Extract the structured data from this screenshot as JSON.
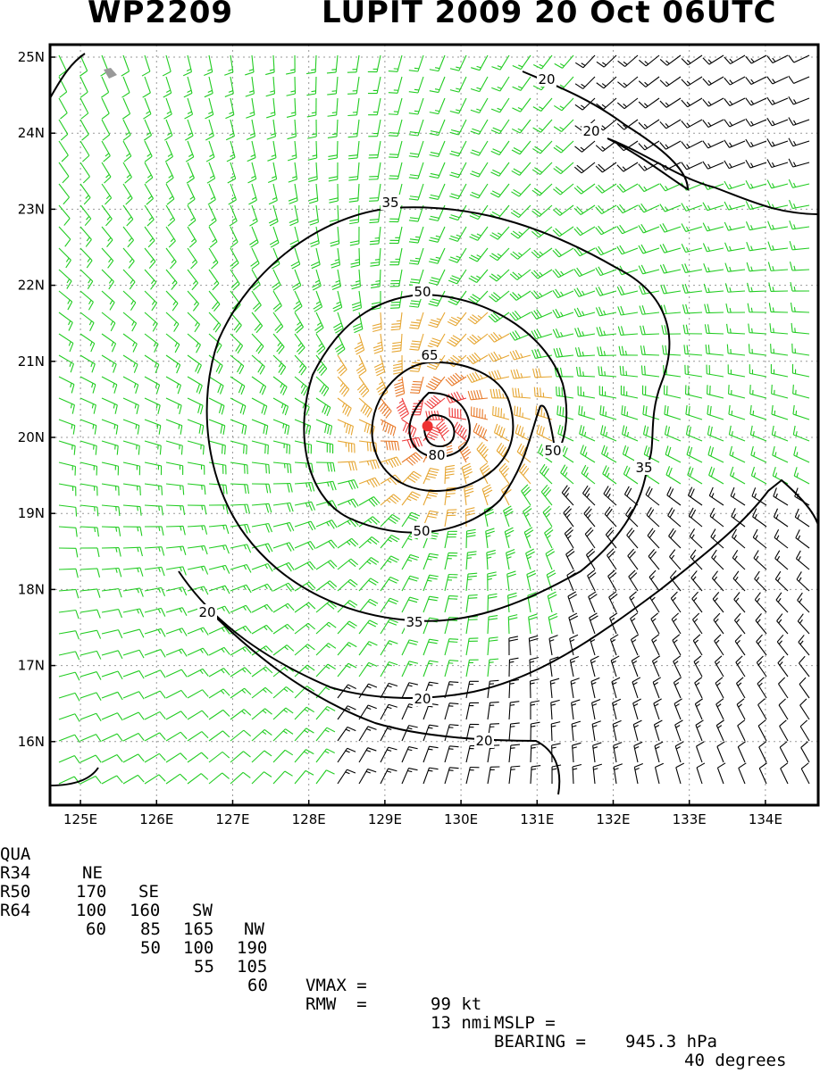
{
  "header": {
    "storm_id": "WP2209",
    "storm_title": "LUPIT 2009 20 Oct 06UTC"
  },
  "map": {
    "lon_labels": [
      "125E",
      "126E",
      "127E",
      "128E",
      "129E",
      "130E",
      "131E",
      "132E",
      "133E",
      "134E"
    ],
    "lat_labels": [
      "25N",
      "24N",
      "23N",
      "22N",
      "21N",
      "20N",
      "19N",
      "18N",
      "17N",
      "16N"
    ],
    "contours": [
      {
        "value": "20",
        "label": "20"
      },
      {
        "value": "35",
        "label": "35"
      },
      {
        "value": "50",
        "label": "50"
      },
      {
        "value": "65",
        "label": "65"
      },
      {
        "value": "80",
        "label": "80"
      }
    ],
    "center_lon": 129.56,
    "center_lat": 20.15,
    "colors": {
      "low": "#22cc22",
      "r34": "#e6a632",
      "r50": "#e87a2a",
      "r64": "#ee3c3c",
      "calm": "#000000",
      "center": "#ee3333"
    }
  },
  "table": {
    "headers": [
      "QUA",
      "NE",
      "SE",
      "SW",
      "NW"
    ],
    "rows": [
      {
        "label": "R34",
        "ne": "170",
        "se": "160",
        "sw": "165",
        "nw": "190"
      },
      {
        "label": "R50",
        "ne": "100",
        "se": "85",
        "sw": "100",
        "nw": "105"
      },
      {
        "label": "R64",
        "ne": "60",
        "se": "50",
        "sw": "55",
        "nw": "60"
      }
    ],
    "vmax_label": "VMAX =",
    "vmax_value": "99 kt",
    "mslp_label": "MSLP =",
    "mslp_value": "945.3 hPa",
    "rmw_label": "RMW  =",
    "rmw_value": "13 nmi",
    "bearing_label": "BEARING =",
    "bearing_value": "40 degrees"
  }
}
